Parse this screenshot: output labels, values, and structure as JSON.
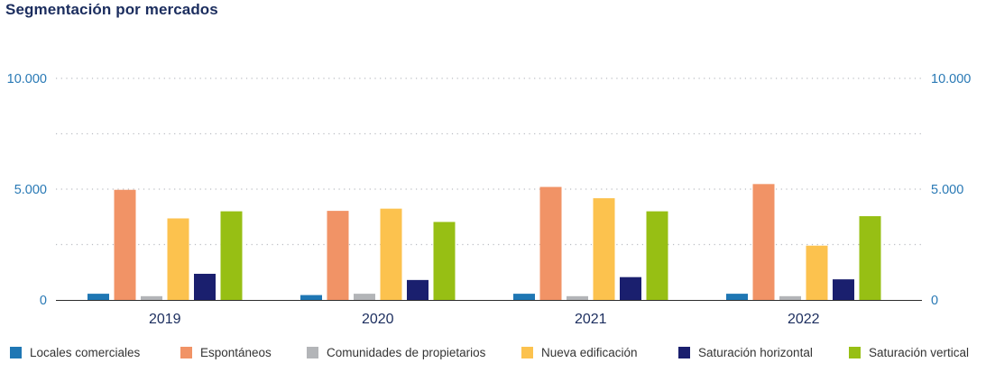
{
  "title": "Segmentación por mercados",
  "chart_data": {
    "type": "bar",
    "title": "Segmentación por mercados",
    "categories": [
      "2019",
      "2020",
      "2021",
      "2022"
    ],
    "series": [
      {
        "name": "Locales comerciales",
        "color": "#1f77b4",
        "values": [
          280,
          220,
          280,
          280
        ]
      },
      {
        "name": "Espontáneos",
        "color": "#f19366",
        "values": [
          4970,
          4020,
          5100,
          5230
        ]
      },
      {
        "name": "Comunidades de propietarios",
        "color": "#b3b5b8",
        "values": [
          170,
          280,
          170,
          170
        ]
      },
      {
        "name": "Nueva edificación",
        "color": "#fcc24e",
        "values": [
          3680,
          4120,
          4590,
          2450
        ]
      },
      {
        "name": "Saturación horizontal",
        "color": "#1a1f6e",
        "values": [
          1180,
          900,
          1030,
          930
        ]
      },
      {
        "name": "Saturación vertical",
        "color": "#97bf14",
        "values": [
          4000,
          3520,
          4000,
          3780
        ]
      }
    ],
    "ylim": [
      0,
      10000
    ],
    "y_ticks": [
      {
        "value": 0,
        "label": "0"
      },
      {
        "value": 5000,
        "label": "5.000"
      },
      {
        "value": 10000,
        "label": "10.000"
      }
    ],
    "grid_values": [
      2500,
      5000,
      7500,
      10000
    ],
    "grid": true,
    "legend_position": "bottom"
  }
}
